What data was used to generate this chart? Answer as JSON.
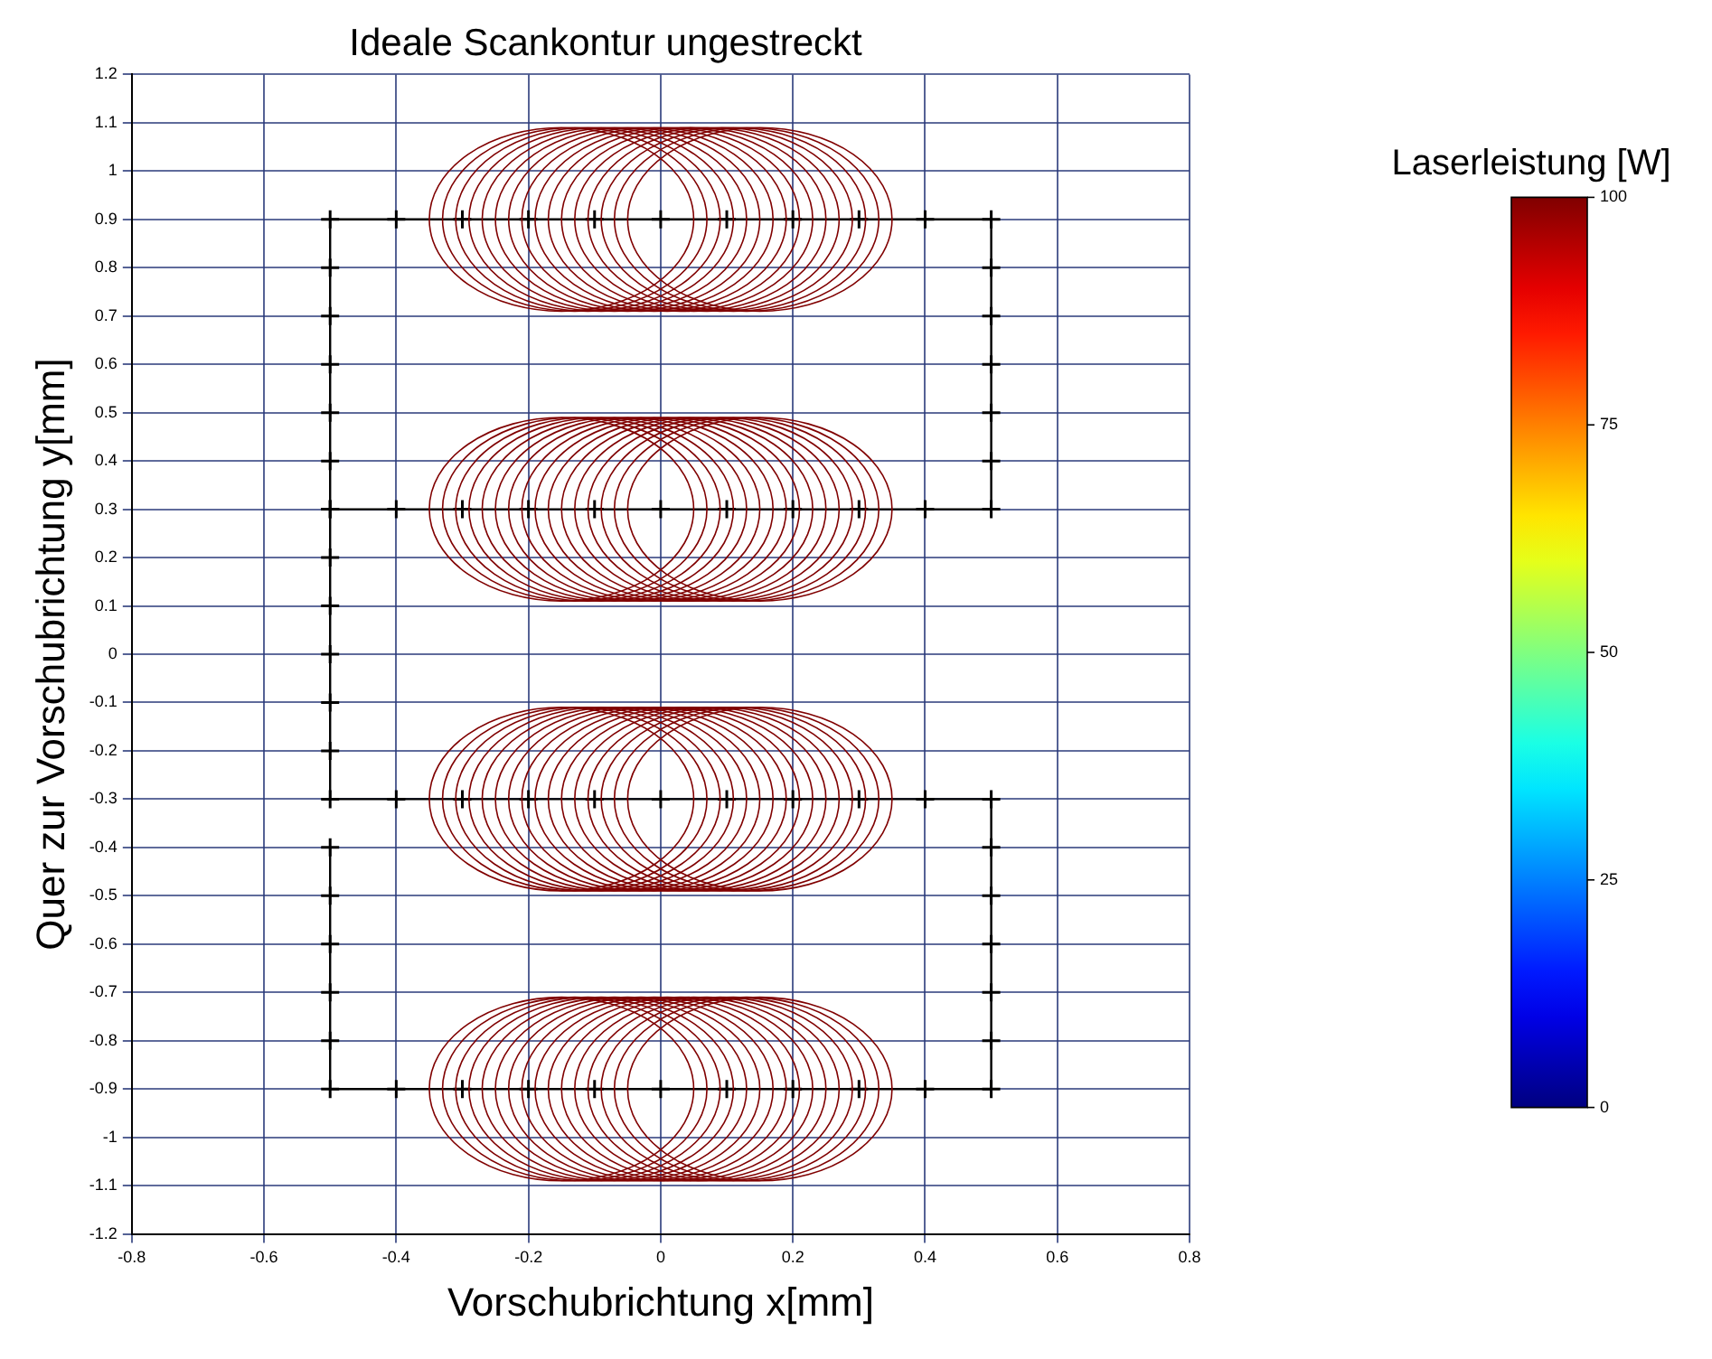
{
  "chart_data": {
    "type": "line",
    "title": "Ideale Scankontur ungestreckt",
    "xlabel": "Vorschubrichtung x[mm]",
    "ylabel": "Quer zur Vorschubrichtung y[mm]",
    "clabel": "Laserleistung [W]",
    "clim": [
      0,
      100
    ],
    "cticks": [
      0,
      25,
      50,
      75,
      100
    ],
    "series": [
      {
        "color": "#000000",
        "marker": "cross",
        "line_style": "solid",
        "x": [
          -0.5,
          -0.5,
          -0.5,
          -0.5,
          -0.5,
          -0.5,
          -0.5,
          -0.4,
          -0.3,
          -0.2,
          -0.1,
          0,
          0.1,
          0.2,
          0.3,
          0.4,
          0.5,
          0.5,
          0.5,
          0.5,
          0.5,
          0.5,
          0.5,
          0.4,
          0.3,
          0.2,
          0.1,
          0,
          -0.1,
          -0.2,
          -0.3,
          -0.4,
          -0.5,
          -0.5,
          -0.5,
          -0.5,
          -0.5,
          -0.5,
          -0.5,
          -0.4,
          -0.3,
          -0.2,
          -0.1,
          0,
          0.1,
          0.2,
          0.3,
          0.4,
          0.5,
          0.5,
          0.5,
          0.5,
          0.5,
          0.5,
          0.5,
          0.4,
          0.3,
          0.2,
          0.1,
          0,
          -0.1,
          -0.2,
          -0.3,
          -0.4,
          -0.5,
          -0.5,
          -0.5,
          -0.5,
          -0.5,
          -0.5
        ],
        "values": [
          0.3,
          0.4,
          0.5,
          0.6,
          0.7,
          0.8,
          0.9,
          0.9,
          0.9,
          0.9,
          0.9,
          0.9,
          0.9,
          0.9,
          0.9,
          0.9,
          0.9,
          0.8,
          0.7,
          0.6,
          0.5,
          0.4,
          0.3,
          0.3,
          0.3,
          0.3,
          0.3,
          0.3,
          0.3,
          0.3,
          0.3,
          0.3,
          0.3,
          0.2,
          0.1,
          0,
          -0.1,
          -0.2,
          -0.3,
          -0.3,
          -0.3,
          -0.3,
          -0.3,
          -0.3,
          -0.3,
          -0.3,
          -0.3,
          -0.3,
          -0.3,
          -0.4,
          -0.5,
          -0.6,
          -0.7,
          -0.8,
          -0.9,
          -0.9,
          -0.9,
          -0.9,
          -0.9,
          -0.9,
          -0.9,
          -0.9,
          -0.9,
          -0.9,
          -0.9,
          -0.8,
          -0.7,
          -0.6,
          -0.5,
          -0.4
        ]
      }
    ],
    "xlim": [
      -0.8,
      0.8
    ],
    "xticks": [
      -0.8,
      -0.6,
      -0.4,
      -0.2,
      0,
      0.2,
      0.4,
      0.6,
      0.8
    ],
    "ylim": [
      -1.2,
      1.2
    ],
    "yticks": [
      -1.2,
      -1.1,
      -1,
      -0.9,
      -0.8,
      -0.7,
      -0.6,
      -0.5,
      -0.4,
      -0.3,
      -0.2,
      -0.1,
      0,
      0.1,
      0.2,
      0.3,
      0.4,
      0.5,
      0.6,
      0.7,
      0.8,
      0.9,
      1,
      1.1,
      1.2
    ],
    "grid": true,
    "legend": false
  }
}
